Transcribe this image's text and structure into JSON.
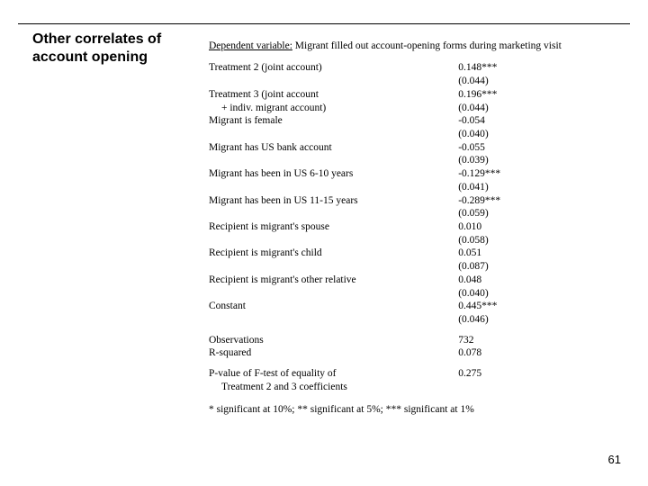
{
  "title": "Other correlates of account opening",
  "dependent_variable_label": "Dependent variable:",
  "dependent_variable_text": " Migrant filled out account-opening forms during marketing visit",
  "rows": [
    {
      "label": "Treatment 2 (joint account)",
      "coef": "0.148***",
      "se": "(0.044)"
    },
    {
      "label": "Treatment 3 (joint account",
      "label2": "+ indiv. migrant account)",
      "coef": "0.196***",
      "se": "(0.044)"
    },
    {
      "label": "Migrant is female",
      "coef": "-0.054",
      "se": "(0.040)"
    },
    {
      "label": "Migrant has US bank account",
      "coef": "-0.055",
      "se": "(0.039)"
    },
    {
      "label": "Migrant has been in US 6-10 years",
      "coef": "-0.129***",
      "se": "(0.041)"
    },
    {
      "label": "Migrant has been in US 11-15 years",
      "coef": "-0.289***",
      "se": "(0.059)"
    },
    {
      "label": "Recipient is migrant's spouse",
      "coef": "0.010",
      "se": "(0.058)"
    },
    {
      "label": "Recipient is migrant's child",
      "coef": "0.051",
      "se": "(0.087)"
    },
    {
      "label": "Recipient is migrant's other relative",
      "coef": "0.048",
      "se": "(0.040)"
    },
    {
      "label": "Constant",
      "coef": "0.445***",
      "se": "(0.046)"
    }
  ],
  "stats": {
    "obs_label": "Observations",
    "obs_value": "732",
    "r2_label": "R-squared",
    "r2_value": "0.078",
    "ftest_label": "P-value of F-test of equality of",
    "ftest_label2": "Treatment 2 and 3 coefficients",
    "ftest_value": "0.275"
  },
  "significance_note": "* significant at 10%; ** significant at 5%; *** significant at 1%",
  "page_number": "61"
}
